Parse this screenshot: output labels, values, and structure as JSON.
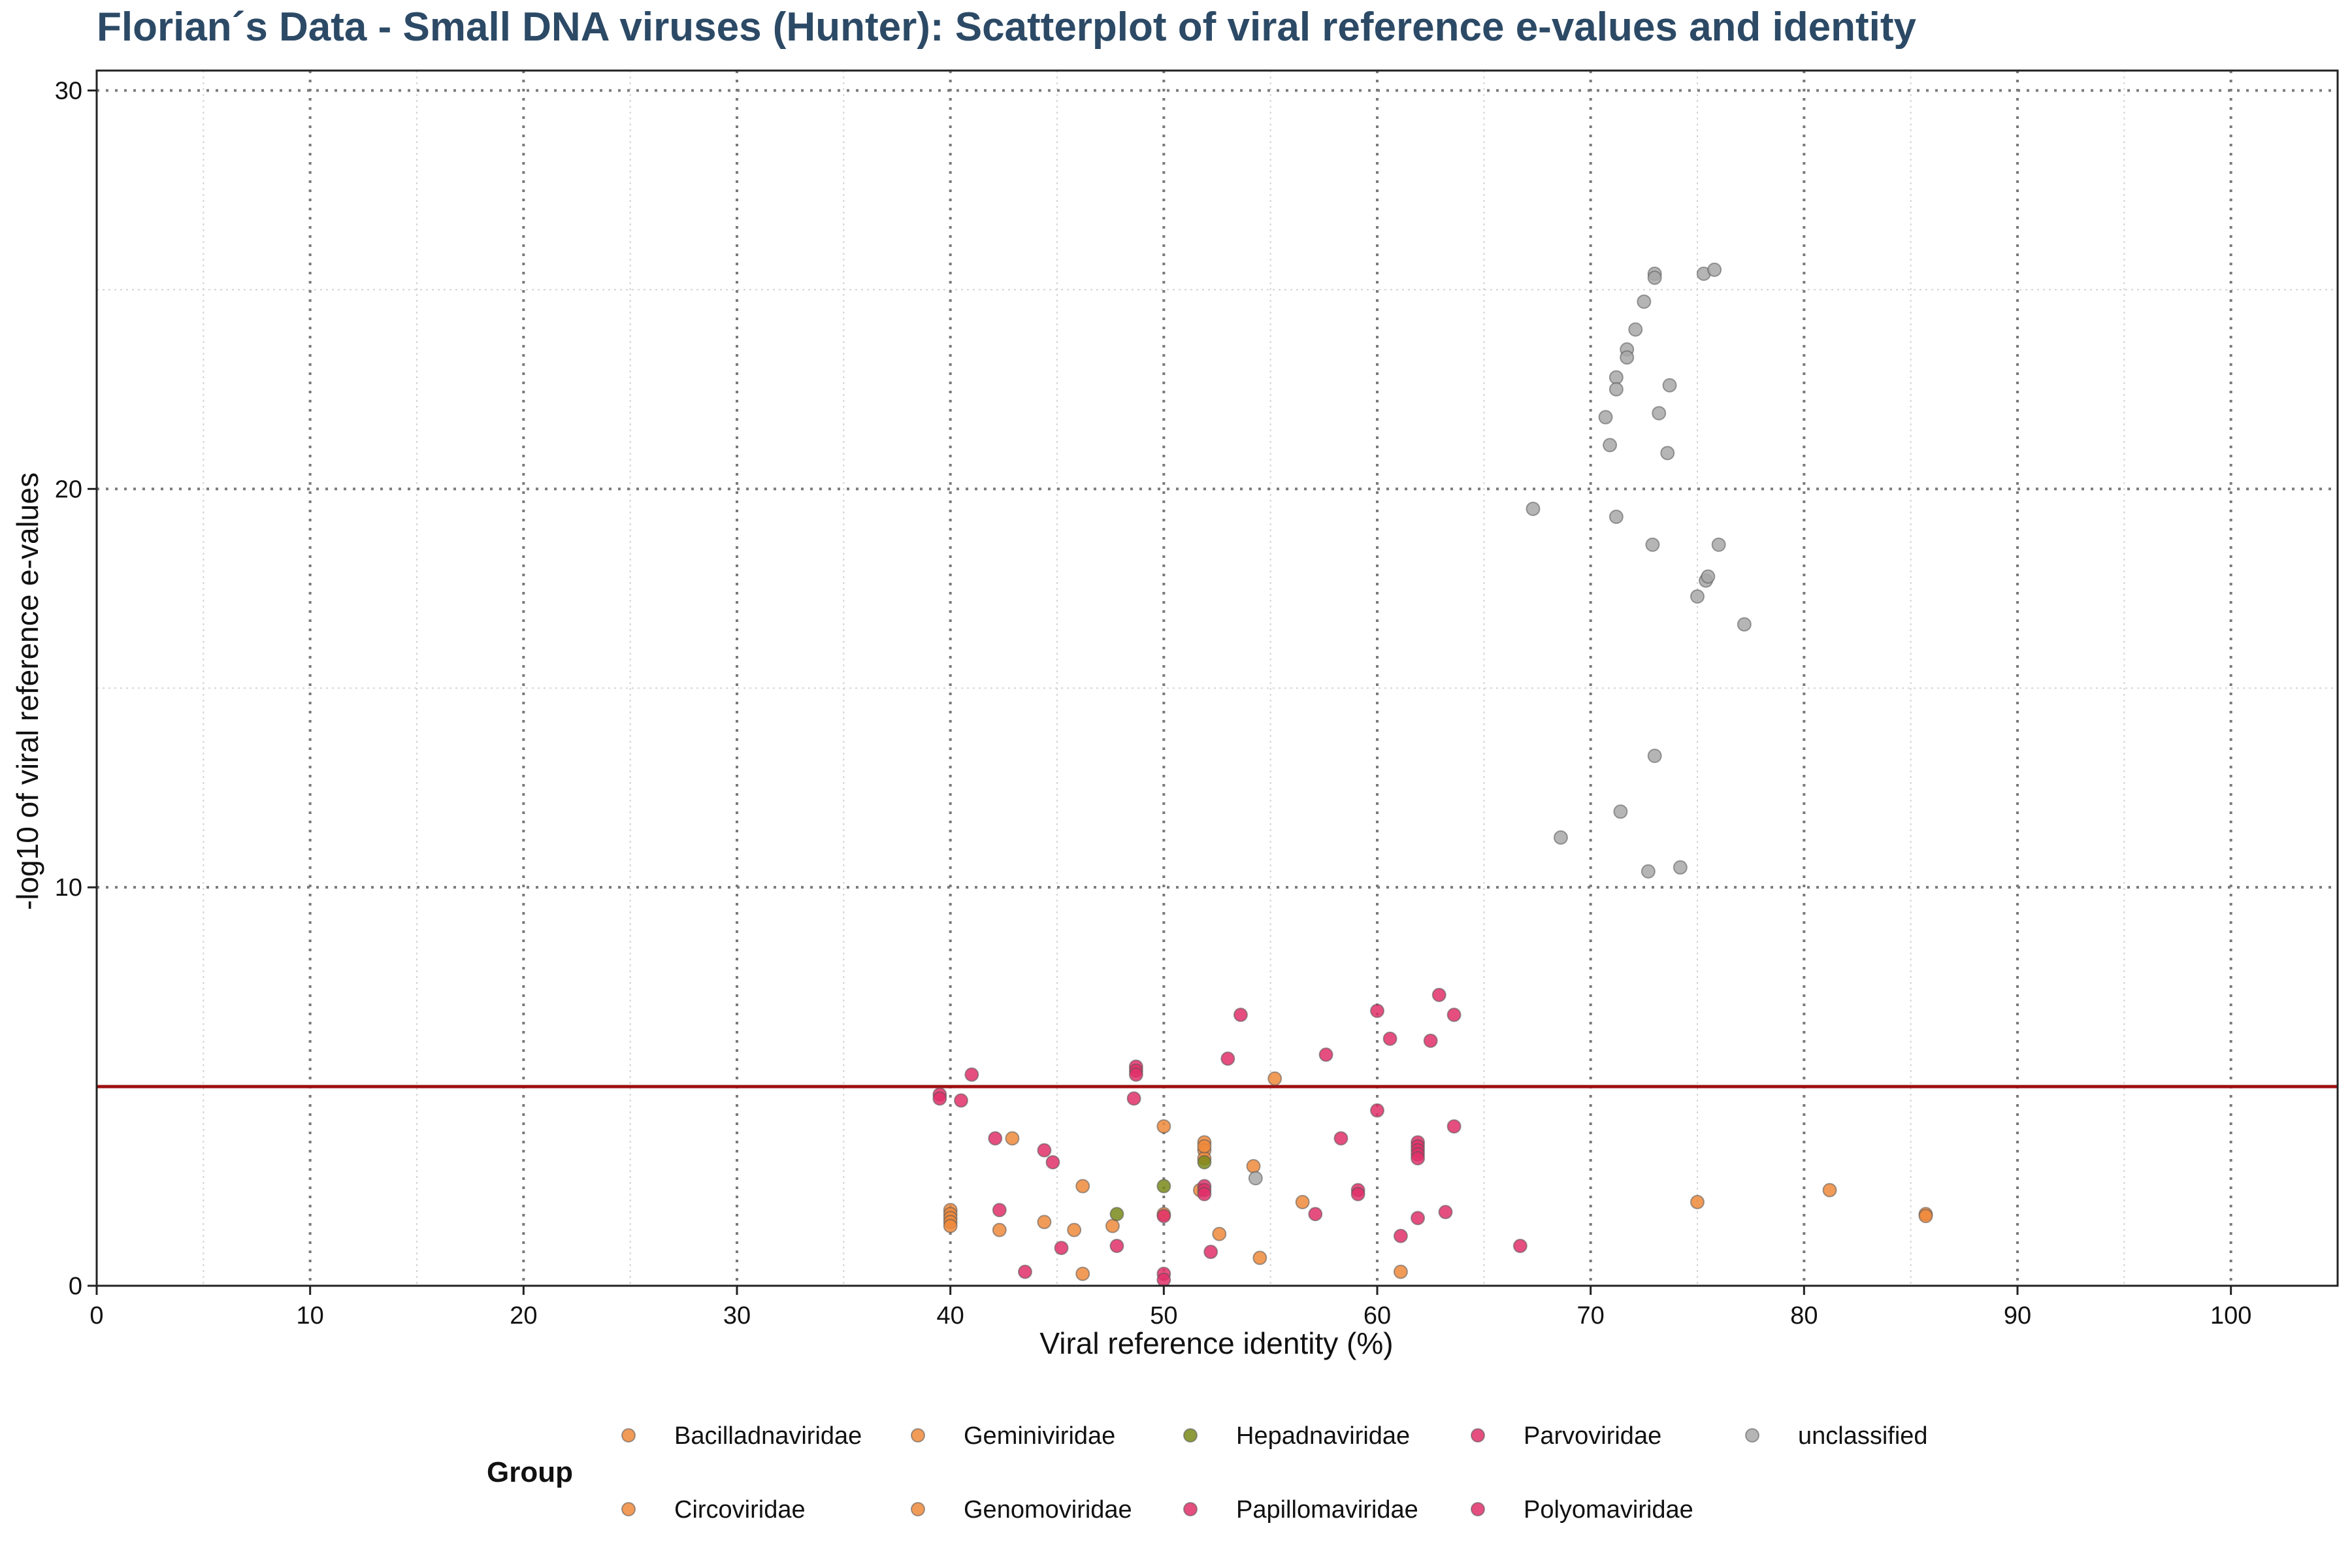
{
  "chart_data": {
    "type": "scatter",
    "title": "Florian´s Data - Small DNA viruses (Hunter): Scatterplot of viral reference e-values and identity",
    "xlabel": "Viral reference identity (%)",
    "ylabel": "-log10 of viral reference e-values",
    "xlim": [
      0,
      105
    ],
    "ylim": [
      0,
      30.5
    ],
    "x_ticks": [
      "0",
      "10",
      "20",
      "30",
      "40",
      "50",
      "60",
      "70",
      "80",
      "90",
      "100"
    ],
    "y_ticks": [
      "0",
      "10",
      "20",
      "30"
    ],
    "x_tick_values": [
      0,
      10,
      20,
      30,
      40,
      50,
      60,
      70,
      80,
      90,
      100
    ],
    "y_tick_values": [
      0,
      10,
      20,
      30
    ],
    "grid": "dotted",
    "threshold_line": {
      "y": 5,
      "color": "#a01010"
    },
    "legend": {
      "title": "Group",
      "position": "bottom",
      "entries": [
        {
          "label": "Bacilladnaviridae",
          "color": "#ee8a3c"
        },
        {
          "label": "Circoviridae",
          "color": "#ee8a3c"
        },
        {
          "label": "Geminiviridae",
          "color": "#ee8a3c"
        },
        {
          "label": "Genomoviridae",
          "color": "#ee8a3c"
        },
        {
          "label": "Hepadnaviridae",
          "color": "#7a8a1a"
        },
        {
          "label": "Papillomaviridae",
          "color": "#e0306a"
        },
        {
          "label": "Parvoviridae",
          "color": "#e0306a"
        },
        {
          "label": "Polyomaviridae",
          "color": "#e0306a"
        },
        {
          "label": "unclassified",
          "color": "#a8a8a8"
        }
      ]
    },
    "series": [
      {
        "name": "Circoviridae",
        "color": "#ee8a3c",
        "points": [
          [
            40,
            1.9
          ],
          [
            40,
            1.8
          ],
          [
            40,
            1.7
          ],
          [
            40,
            1.6
          ],
          [
            40,
            1.5
          ],
          [
            42.3,
            1.4
          ],
          [
            42.9,
            3.7
          ],
          [
            44.4,
            1.6
          ],
          [
            45.8,
            1.4
          ],
          [
            46.2,
            0.3
          ],
          [
            46.2,
            2.5
          ],
          [
            47.6,
            1.5
          ],
          [
            50,
            4
          ],
          [
            50,
            1.8
          ],
          [
            51.7,
            2.4
          ],
          [
            51.9,
            3.6
          ],
          [
            51.9,
            3.4
          ],
          [
            51.9,
            3.2
          ],
          [
            51.9,
            3.5
          ],
          [
            52.6,
            1.3
          ],
          [
            54.2,
            3
          ],
          [
            54.5,
            0.7
          ],
          [
            55.2,
            5.2
          ],
          [
            56.5,
            2.1
          ],
          [
            61.1,
            0.35
          ],
          [
            75,
            2.1
          ],
          [
            81.2,
            2.4
          ],
          [
            85.7,
            1.8
          ],
          [
            85.7,
            1.75
          ]
        ]
      },
      {
        "name": "Hepadnaviridae",
        "color": "#7a8a1a",
        "points": [
          [
            47.8,
            1.8
          ],
          [
            50,
            2.5
          ],
          [
            51.9,
            3.1
          ]
        ]
      },
      {
        "name": "Parvoviridae",
        "color": "#e0306a",
        "points": [
          [
            39.5,
            4.8
          ],
          [
            39.5,
            4.7
          ],
          [
            40.5,
            4.65
          ],
          [
            41,
            5.3
          ],
          [
            42.1,
            3.7
          ],
          [
            42.3,
            1.9
          ],
          [
            43.5,
            0.35
          ],
          [
            44.4,
            3.4
          ],
          [
            44.8,
            3.1
          ],
          [
            45.2,
            0.95
          ],
          [
            47.8,
            1
          ],
          [
            48.6,
            4.7
          ],
          [
            48.7,
            5.5
          ],
          [
            48.7,
            5.4
          ],
          [
            48.7,
            5.3
          ],
          [
            50,
            1.75
          ],
          [
            50,
            0.3
          ],
          [
            50,
            0.15
          ],
          [
            51.9,
            2.5
          ],
          [
            51.9,
            2.4
          ],
          [
            51.9,
            2.3
          ],
          [
            52.2,
            0.85
          ],
          [
            53,
            5.7
          ],
          [
            53.6,
            6.8
          ],
          [
            57.1,
            1.8
          ],
          [
            57.6,
            5.8
          ],
          [
            58.3,
            3.7
          ],
          [
            59.1,
            2.4
          ],
          [
            59.1,
            2.3
          ],
          [
            60,
            6.9
          ],
          [
            60,
            4.4
          ],
          [
            60.6,
            6.2
          ],
          [
            61.1,
            1.25
          ],
          [
            61.9,
            3.6
          ],
          [
            61.9,
            3.5
          ],
          [
            61.9,
            3.4
          ],
          [
            61.9,
            3.3
          ],
          [
            61.9,
            3.2
          ],
          [
            61.9,
            1.7
          ],
          [
            62.5,
            6.15
          ],
          [
            62.9,
            7.3
          ],
          [
            63.2,
            1.85
          ],
          [
            63.6,
            6.8
          ],
          [
            63.6,
            4
          ],
          [
            66.7,
            1
          ]
        ]
      },
      {
        "name": "unclassified",
        "color": "#a8a8a8",
        "points": [
          [
            54.3,
            2.7
          ],
          [
            67.3,
            19.5
          ],
          [
            68.6,
            11.25
          ],
          [
            70.7,
            21.8
          ],
          [
            70.9,
            21.1
          ],
          [
            71.2,
            22.8
          ],
          [
            71.2,
            22.5
          ],
          [
            71.2,
            19.3
          ],
          [
            71.4,
            11.9
          ],
          [
            71.7,
            23.5
          ],
          [
            71.7,
            23.3
          ],
          [
            72.1,
            24
          ],
          [
            72.5,
            24.7
          ],
          [
            72.7,
            10.4
          ],
          [
            73,
            13.3
          ],
          [
            72.9,
            18.6
          ],
          [
            73,
            25.4
          ],
          [
            73,
            25.3
          ],
          [
            73.2,
            21.9
          ],
          [
            73.6,
            20.9
          ],
          [
            73.7,
            22.6
          ],
          [
            74.2,
            10.5
          ],
          [
            75,
            17.3
          ],
          [
            75.3,
            25.4
          ],
          [
            75.4,
            17.7
          ],
          [
            75.5,
            17.8
          ],
          [
            75.8,
            25.5
          ],
          [
            76,
            18.6
          ],
          [
            77.2,
            16.6
          ]
        ]
      }
    ]
  }
}
